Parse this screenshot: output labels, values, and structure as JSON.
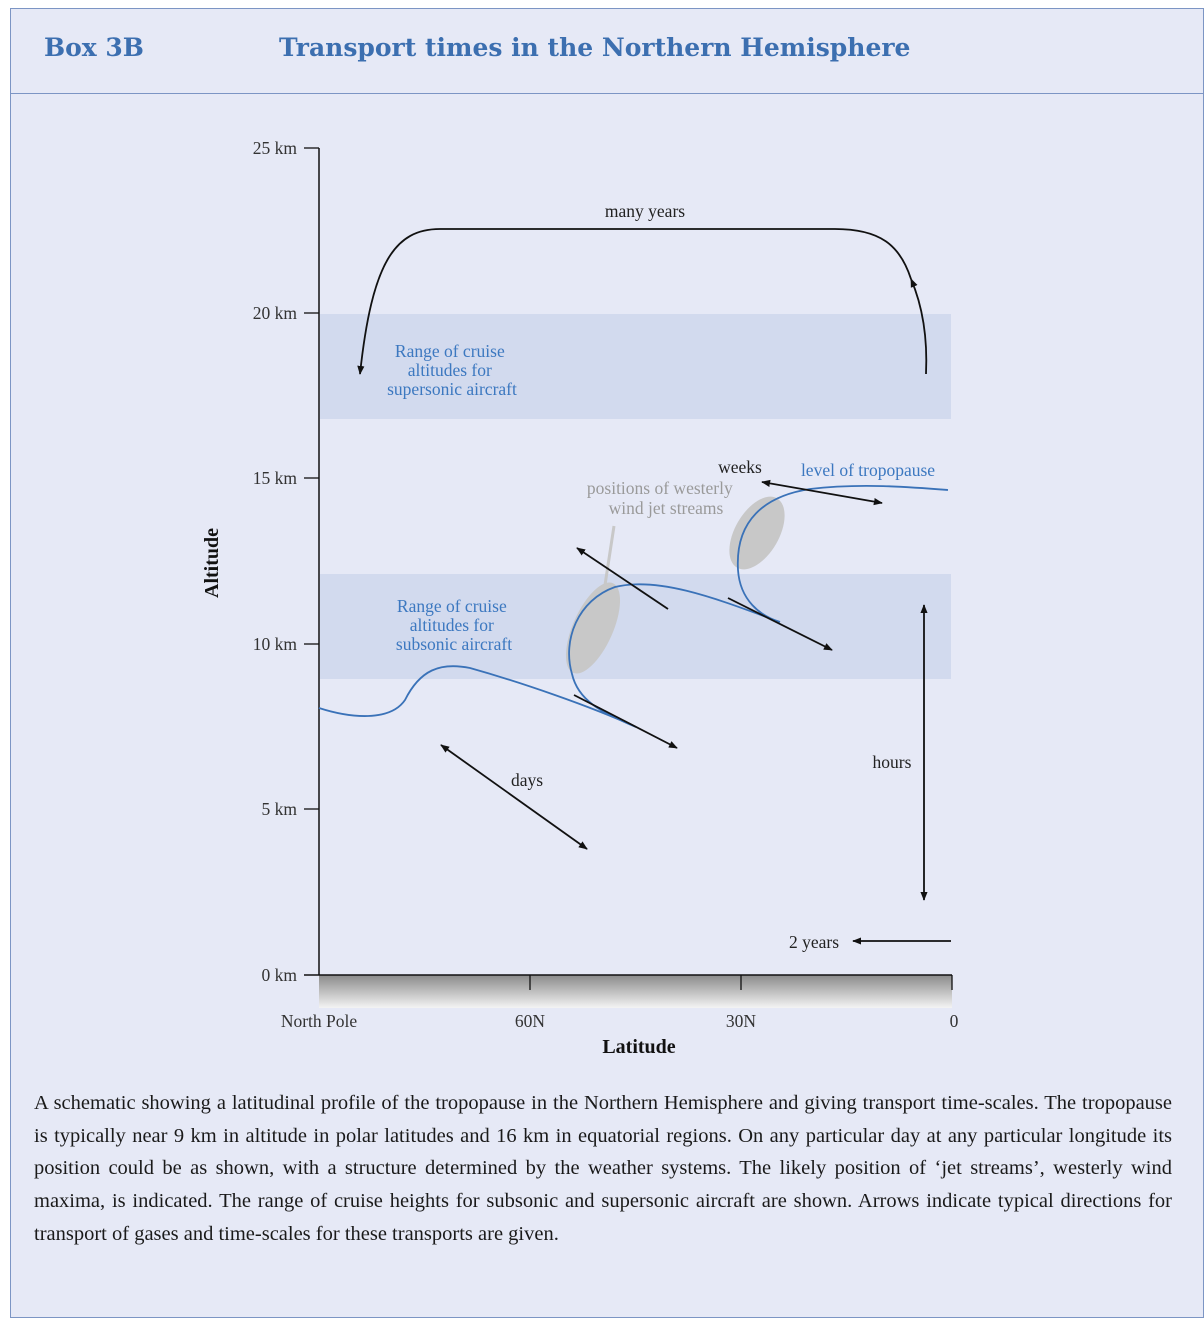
{
  "header": {
    "box_label": "Box 3B",
    "title": "Transport times in the Northern Hemisphere"
  },
  "diagram": {
    "y_axis": {
      "title": "Altitude",
      "ticks": [
        "25 km",
        "20 km",
        "15 km",
        "10 km",
        "5 km",
        "0 km"
      ]
    },
    "x_axis": {
      "title": "Latitude",
      "ticks": [
        "North Pole",
        "60N",
        "30N",
        "0"
      ]
    },
    "bands": {
      "supersonic_label": [
        "Range of cruise",
        "altitudes for",
        "supersonic aircraft"
      ],
      "subsonic_label": [
        "Range of cruise",
        "altitudes for",
        "subsonic aircraft"
      ]
    },
    "labels": {
      "many_years": "many years",
      "weeks": "weeks",
      "tropopause": "level of tropopause",
      "jet_streams": [
        "positions of westerly",
        "wind jet streams"
      ],
      "days": "days",
      "hours": "hours",
      "two_years": "2 years"
    },
    "colors": {
      "band": "#d2daee",
      "tropopause_line": "#3a72b8",
      "jet_ellipse": "#c8c8c8",
      "accent_text": "#3c78c0"
    }
  },
  "caption": "A schematic showing a latitudinal profile of the tropopause in the Northern Hemisphere and giving transport time-scales. The tropopause is typically near 9 km in altitude in polar latitudes and 16 km in equatorial regions. On any particular day at any particular longitude its position could be as shown, with a structure determined by the weather systems. The likely position of ‘jet streams’, westerly wind maxima, is indicated. The range of cruise heights for subsonic and supersonic aircraft are shown. Arrows indicate typical directions for transport of gases and time-scales for these transports are given."
}
